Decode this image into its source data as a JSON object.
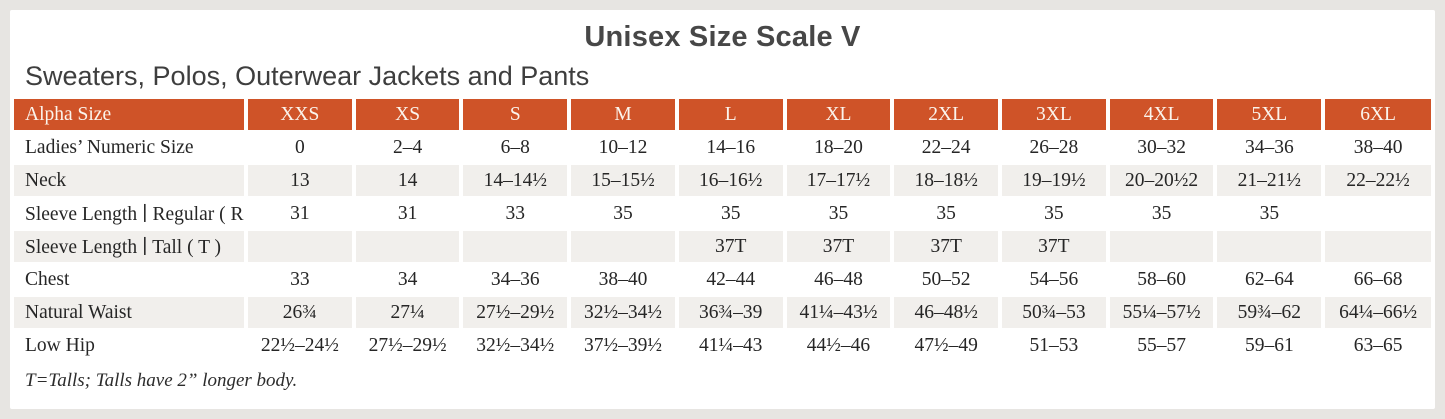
{
  "title": "Unisex Size Scale V",
  "subtitle": "Sweaters, Polos, Outerwear Jackets and Pants",
  "footnote": "T=Talls; Talls have 2” longer body.",
  "colors": {
    "header_bg": "#cf5328",
    "header_text": "#fbf4ec",
    "shaded_row_bg": "#f1efec",
    "frame_bg": "#e7e5e2",
    "title_text": "#474747",
    "body_text": "#262626"
  },
  "table": {
    "columns": [
      "Alpha Size",
      "XXS",
      "XS",
      "S",
      "M",
      "L",
      "XL",
      "2XL",
      "3XL",
      "4XL",
      "5XL",
      "6XL"
    ],
    "rows": [
      {
        "label": "Ladies’ Numeric Size",
        "values": [
          "0",
          "2–4",
          "6–8",
          "10–12",
          "14–16",
          "18–20",
          "22–24",
          "26–28",
          "30–32",
          "34–36",
          "38–40"
        ]
      },
      {
        "label": "Neck",
        "values": [
          "13",
          "14",
          "14–14½",
          "15–15½",
          "16–16½",
          "17–17½",
          "18–18½",
          "19–19½",
          "20–20½2",
          "21–21½",
          "22–22½"
        ]
      },
      {
        "label": "Sleeve Length ∣ Regular ( R )",
        "values": [
          "31",
          "31",
          "33",
          "35",
          "35",
          "35",
          "35",
          "35",
          "35",
          "35",
          ""
        ]
      },
      {
        "label": "Sleeve Length ∣ Tall ( T )",
        "values": [
          "",
          "",
          "",
          "",
          "37T",
          "37T",
          "37T",
          "37T",
          "",
          "",
          ""
        ]
      },
      {
        "label": "Chest",
        "values": [
          "33",
          "34",
          "34–36",
          "38–40",
          "42–44",
          "46–48",
          "50–52",
          "54–56",
          "58–60",
          "62–64",
          "66–68"
        ]
      },
      {
        "label": "Natural Waist",
        "values": [
          "26¾",
          "27¼",
          "27½–29½",
          "32½–34½",
          "36¾–39",
          "41¼–43½",
          "46–48½",
          "50¾–53",
          "55¼–57½",
          "59¾–62",
          "64¼–66½"
        ]
      },
      {
        "label": "Low Hip",
        "values": [
          "22½–24½",
          "27½–29½",
          "32½–34½",
          "37½–39½",
          "41¼–43",
          "44½–46",
          "47½–49",
          "51–53",
          "55–57",
          "59–61",
          "63–65"
        ]
      }
    ]
  }
}
